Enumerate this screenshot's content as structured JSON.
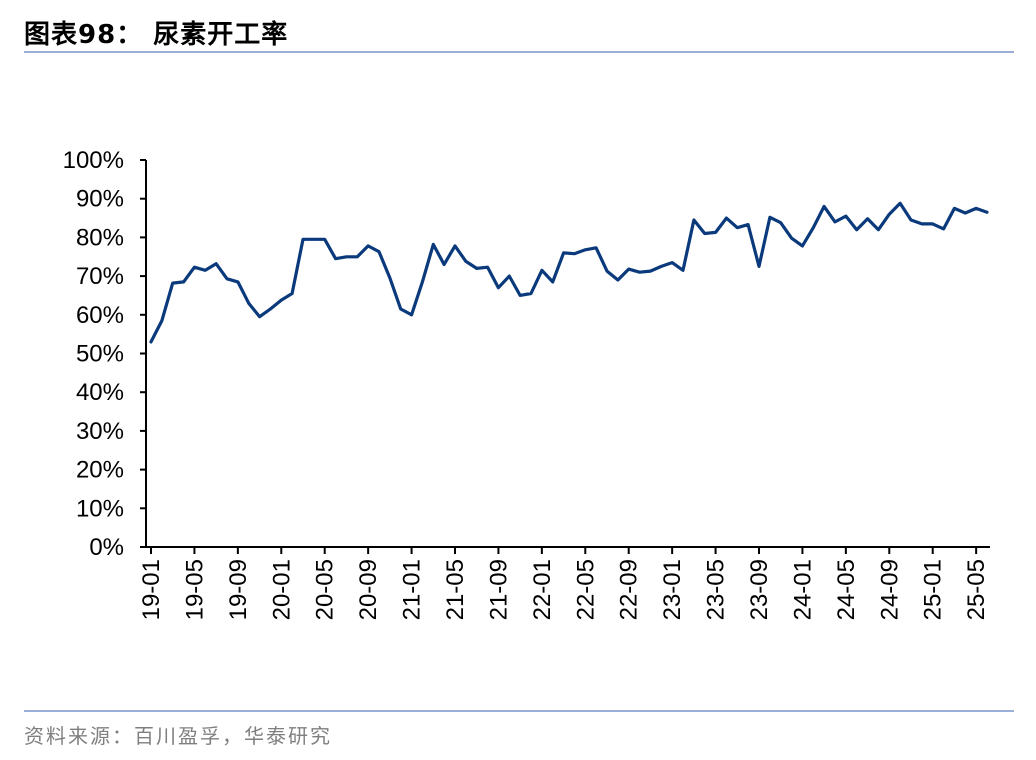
{
  "figure_title": "图表98： 尿素开工率",
  "source_note": "资料来源：百川盈孚，华泰研究",
  "chart_data": {
    "type": "line",
    "title": "",
    "xlabel": "",
    "ylabel": "",
    "ylim": [
      0,
      100
    ],
    "yticks": [
      "0%",
      "10%",
      "20%",
      "30%",
      "40%",
      "50%",
      "60%",
      "70%",
      "80%",
      "90%",
      "100%"
    ],
    "xticks": [
      "19-01",
      "19-05",
      "19-09",
      "20-01",
      "20-05",
      "20-09",
      "21-01",
      "21-05",
      "21-09",
      "22-01",
      "22-05",
      "22-09",
      "23-01",
      "23-05",
      "23-09",
      "24-01",
      "24-05",
      "24-09",
      "25-01",
      "25-05"
    ],
    "grid": false,
    "legend": "none",
    "line_color": "#0b3a7c",
    "x": [
      "19-01",
      "19-02",
      "19-03",
      "19-04",
      "19-05",
      "19-06",
      "19-07",
      "19-08",
      "19-09",
      "19-10",
      "19-11",
      "19-12",
      "20-01",
      "20-02",
      "20-03",
      "20-04",
      "20-05",
      "20-06",
      "20-07",
      "20-08",
      "20-09",
      "20-10",
      "20-11",
      "20-12",
      "21-01",
      "21-02",
      "21-03",
      "21-04",
      "21-05",
      "21-06",
      "21-07",
      "21-08",
      "21-09",
      "21-10",
      "21-11",
      "21-12",
      "22-01",
      "22-02",
      "22-03",
      "22-04",
      "22-05",
      "22-06",
      "22-07",
      "22-08",
      "22-09",
      "22-10",
      "22-11",
      "22-12",
      "23-01",
      "23-02",
      "23-03",
      "23-04",
      "23-05",
      "23-06",
      "23-07",
      "23-08",
      "23-09",
      "23-10",
      "23-11",
      "23-12",
      "24-01",
      "24-02",
      "24-03",
      "24-04",
      "24-05",
      "24-06",
      "24-07",
      "24-08",
      "24-09",
      "24-10",
      "24-11",
      "24-12",
      "25-01",
      "25-02",
      "25-03",
      "25-04",
      "25-05",
      "25-06"
    ],
    "series": [
      {
        "values": [
          53.0,
          58.5,
          68.2,
          68.5,
          72.3,
          71.5,
          73.2,
          69.3,
          68.5,
          63.0,
          59.5,
          61.5,
          63.8,
          65.5,
          79.5,
          79.5,
          79.5,
          74.5,
          75.0,
          75.0,
          77.8,
          76.3,
          69.5,
          61.5,
          60.0,
          68.5,
          78.2,
          73.0,
          77.8,
          73.8,
          72.0,
          72.3,
          67.0,
          70.0,
          65.0,
          65.5,
          71.5,
          68.5,
          76.0,
          75.8,
          76.8,
          77.3,
          71.3,
          69.0,
          71.8,
          71.0,
          71.3,
          72.5,
          73.5,
          71.5,
          84.5,
          81.0,
          81.3,
          85.0,
          82.5,
          83.3,
          72.5,
          85.2,
          83.8,
          79.8,
          77.8,
          82.5,
          88.0,
          84.0,
          85.5,
          82.0,
          84.8,
          82.0,
          86.0,
          88.8,
          84.5,
          83.5,
          83.5,
          82.2,
          87.5,
          86.3,
          87.5,
          86.5
        ]
      }
    ]
  }
}
